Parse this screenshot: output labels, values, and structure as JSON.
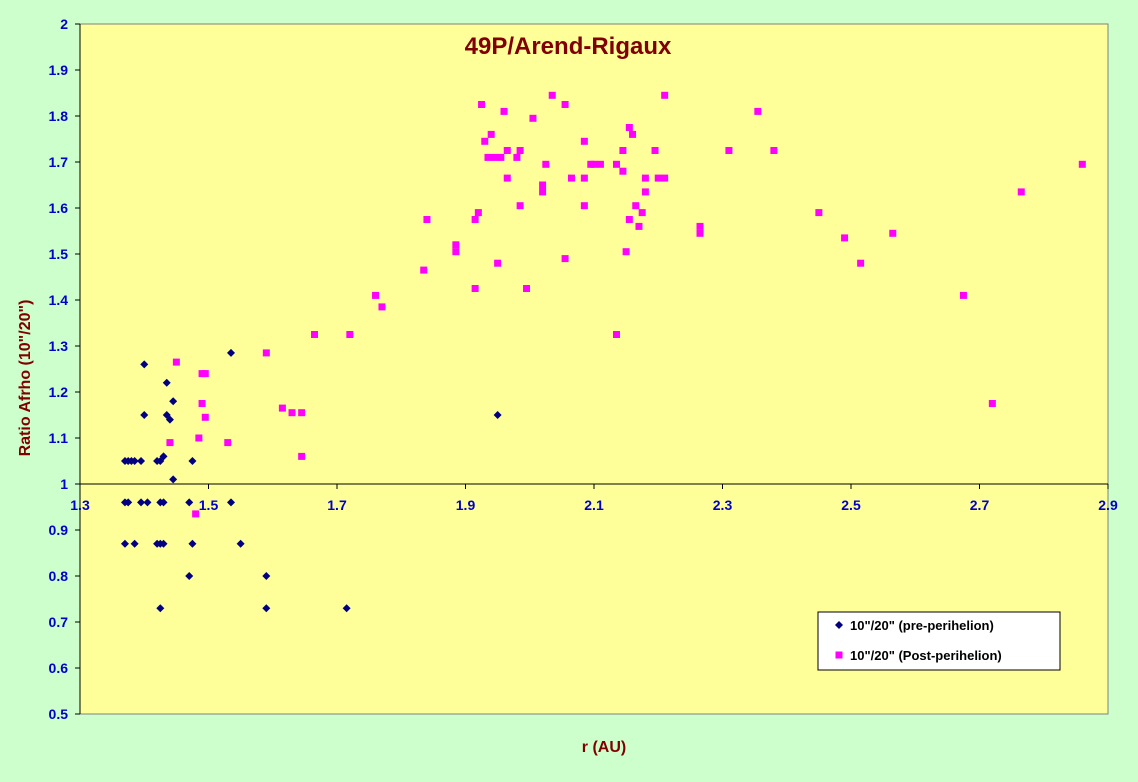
{
  "colors": {
    "background": "#ccffcc",
    "plot_area": "#ffff99",
    "title": "#800000",
    "axis_label": "#800000",
    "tick_label": "#0000cc",
    "pre_marker": "#000080",
    "post_marker": "#ff00ff"
  },
  "chart_data": {
    "type": "scatter",
    "title": "49P/Arend-Rigaux",
    "xlabel": "r (AU)",
    "ylabel": "Ratio Afrho (10\"/20\")",
    "xlim": [
      1.3,
      2.9
    ],
    "ylim": [
      0.5,
      2.0
    ],
    "x_axis_crosses_y": 1.0,
    "x_ticks": [
      "1.3",
      "1.5",
      "1.7",
      "1.9",
      "2.1",
      "2.3",
      "2.5",
      "2.7",
      "2.9"
    ],
    "y_ticks": [
      "0.5",
      "0.6",
      "0.7",
      "0.8",
      "0.9",
      "1",
      "1.1",
      "1.2",
      "1.3",
      "1.4",
      "1.5",
      "1.6",
      "1.7",
      "1.8",
      "1.9",
      "2"
    ],
    "grid": false,
    "legend_position": "bottom-right",
    "series": [
      {
        "name": "10\"/20\" (pre-perihelion)",
        "marker": "diamond",
        "color": "#000080",
        "points": [
          [
            1.37,
            1.05
          ],
          [
            1.375,
            1.05
          ],
          [
            1.38,
            1.05
          ],
          [
            1.385,
            1.05
          ],
          [
            1.395,
            1.05
          ],
          [
            1.42,
            1.05
          ],
          [
            1.425,
            1.05
          ],
          [
            1.43,
            1.06
          ],
          [
            1.475,
            1.05
          ],
          [
            1.4,
            1.26
          ],
          [
            1.4,
            1.15
          ],
          [
            1.435,
            1.22
          ],
          [
            1.435,
            1.15
          ],
          [
            1.44,
            1.14
          ],
          [
            1.445,
            1.18
          ],
          [
            1.445,
            1.01
          ],
          [
            1.535,
            1.285
          ],
          [
            1.95,
            1.15
          ],
          [
            1.37,
            0.96
          ],
          [
            1.375,
            0.96
          ],
          [
            1.395,
            0.96
          ],
          [
            1.405,
            0.96
          ],
          [
            1.425,
            0.96
          ],
          [
            1.43,
            0.96
          ],
          [
            1.47,
            0.96
          ],
          [
            1.535,
            0.96
          ],
          [
            1.37,
            0.87
          ],
          [
            1.385,
            0.87
          ],
          [
            1.42,
            0.87
          ],
          [
            1.425,
            0.87
          ],
          [
            1.43,
            0.87
          ],
          [
            1.475,
            0.87
          ],
          [
            1.55,
            0.87
          ],
          [
            1.47,
            0.8
          ],
          [
            1.59,
            0.8
          ],
          [
            1.425,
            0.73
          ],
          [
            1.59,
            0.73
          ],
          [
            1.715,
            0.73
          ]
        ]
      },
      {
        "name": "10\"/20\" (Post-perihelion)",
        "marker": "square",
        "color": "#ff00ff",
        "points": [
          [
            1.44,
            1.09
          ],
          [
            1.45,
            1.265
          ],
          [
            1.48,
            0.935
          ],
          [
            1.485,
            1.1
          ],
          [
            1.49,
            1.175
          ],
          [
            1.49,
            1.24
          ],
          [
            1.495,
            1.24
          ],
          [
            1.495,
            1.145
          ],
          [
            1.53,
            1.09
          ],
          [
            1.59,
            1.285
          ],
          [
            1.615,
            1.165
          ],
          [
            1.63,
            1.155
          ],
          [
            1.645,
            1.155
          ],
          [
            1.645,
            1.06
          ],
          [
            1.665,
            1.325
          ],
          [
            1.72,
            1.325
          ],
          [
            1.76,
            1.41
          ],
          [
            1.77,
            1.385
          ],
          [
            1.835,
            1.465
          ],
          [
            1.84,
            1.575
          ],
          [
            1.885,
            1.52
          ],
          [
            1.885,
            1.505
          ],
          [
            1.915,
            1.575
          ],
          [
            1.915,
            1.425
          ],
          [
            1.92,
            1.59
          ],
          [
            1.925,
            1.825
          ],
          [
            1.93,
            1.745
          ],
          [
            1.935,
            1.71
          ],
          [
            1.94,
            1.76
          ],
          [
            1.945,
            1.71
          ],
          [
            1.95,
            1.48
          ],
          [
            1.955,
            1.71
          ],
          [
            1.96,
            1.81
          ],
          [
            1.965,
            1.725
          ],
          [
            1.965,
            1.665
          ],
          [
            1.98,
            1.71
          ],
          [
            1.985,
            1.725
          ],
          [
            1.985,
            1.605
          ],
          [
            1.995,
            1.425
          ],
          [
            2.005,
            1.795
          ],
          [
            2.02,
            1.635
          ],
          [
            2.02,
            1.65
          ],
          [
            2.025,
            1.695
          ],
          [
            2.035,
            1.845
          ],
          [
            2.055,
            1.825
          ],
          [
            2.055,
            1.49
          ],
          [
            2.065,
            1.665
          ],
          [
            2.085,
            1.605
          ],
          [
            2.085,
            1.665
          ],
          [
            2.085,
            1.745
          ],
          [
            2.095,
            1.695
          ],
          [
            2.1,
            1.695
          ],
          [
            2.11,
            1.695
          ],
          [
            2.135,
            1.695
          ],
          [
            2.135,
            1.325
          ],
          [
            2.145,
            1.68
          ],
          [
            2.145,
            1.725
          ],
          [
            2.15,
            1.505
          ],
          [
            2.155,
            1.775
          ],
          [
            2.155,
            1.575
          ],
          [
            2.16,
            1.76
          ],
          [
            2.165,
            1.605
          ],
          [
            2.17,
            1.56
          ],
          [
            2.175,
            1.59
          ],
          [
            2.18,
            1.665
          ],
          [
            2.18,
            1.635
          ],
          [
            2.195,
            1.725
          ],
          [
            2.2,
            1.665
          ],
          [
            2.21,
            1.665
          ],
          [
            2.21,
            1.845
          ],
          [
            2.265,
            1.56
          ],
          [
            2.265,
            1.545
          ],
          [
            2.31,
            1.725
          ],
          [
            2.355,
            1.81
          ],
          [
            2.38,
            1.725
          ],
          [
            2.45,
            1.59
          ],
          [
            2.49,
            1.535
          ],
          [
            2.515,
            1.48
          ],
          [
            2.565,
            1.545
          ],
          [
            2.675,
            1.41
          ],
          [
            2.72,
            1.175
          ],
          [
            2.765,
            1.635
          ],
          [
            2.86,
            1.695
          ]
        ]
      }
    ]
  }
}
